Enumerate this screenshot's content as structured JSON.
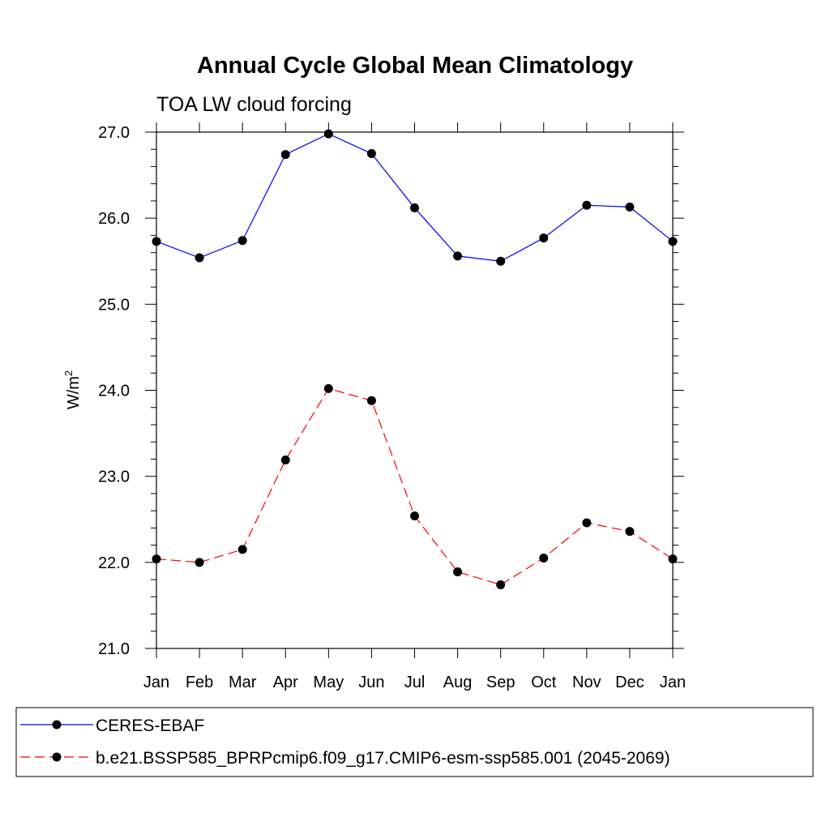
{
  "chart_data": {
    "type": "line",
    "title": "Annual Cycle Global Mean Climatology",
    "subtitle": "TOA LW cloud forcing",
    "ylabel": "W/m",
    "ylabel_sup": "2",
    "xlabel": "",
    "categories": [
      "Jan",
      "Feb",
      "Mar",
      "Apr",
      "May",
      "Jun",
      "Jul",
      "Aug",
      "Sep",
      "Oct",
      "Nov",
      "Dec",
      "Jan"
    ],
    "ylim": [
      21.0,
      27.0
    ],
    "yticks": [
      "21.0",
      "22.0",
      "23.0",
      "24.0",
      "25.0",
      "26.0",
      "27.0"
    ],
    "grid": false,
    "legend_position": "bottom",
    "series": [
      {
        "name": "CERES-EBAF",
        "color": "#0000ff",
        "dash": "solid",
        "marker": "circle",
        "values": [
          25.73,
          25.54,
          25.74,
          26.74,
          26.98,
          26.75,
          26.12,
          25.56,
          25.5,
          25.77,
          26.15,
          26.13,
          25.73
        ]
      },
      {
        "name": "b.e21.BSSP585_BPRPcmip6.f09_g17.CMIP6-esm-ssp585.001 (2045-2069)",
        "color": "#ff0000",
        "dash": "dashed",
        "marker": "circle",
        "values": [
          22.04,
          22.0,
          22.15,
          23.19,
          24.02,
          23.88,
          22.54,
          21.89,
          21.74,
          22.05,
          22.46,
          22.36,
          22.04
        ]
      }
    ]
  }
}
